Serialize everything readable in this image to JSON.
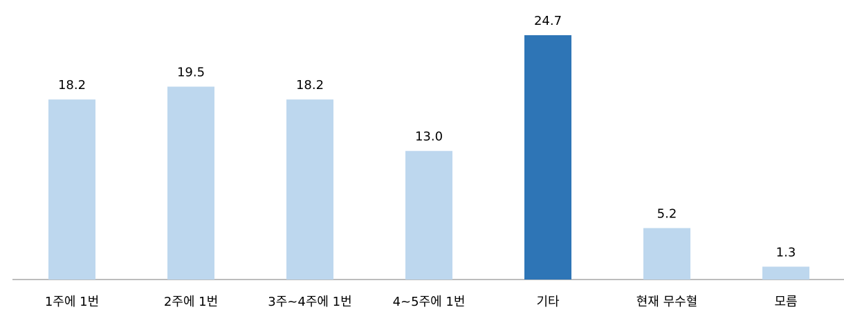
{
  "chart_data": {
    "type": "bar",
    "categories": [
      "1주에 1번",
      "2주에 1번",
      "3주~4주에 1번",
      "4~5주에 1번",
      "기타",
      "현재 무수혈",
      "모름"
    ],
    "values": [
      18.2,
      19.5,
      18.2,
      13.0,
      24.7,
      5.2,
      1.3
    ],
    "value_labels": [
      "18.2",
      "19.5",
      "18.2",
      "13.0",
      "24.7",
      "5.2",
      "1.3"
    ],
    "colors": [
      "#bdd7ee",
      "#bdd7ee",
      "#bdd7ee",
      "#bdd7ee",
      "#2e75b6",
      "#bdd7ee",
      "#bdd7ee"
    ]
  }
}
